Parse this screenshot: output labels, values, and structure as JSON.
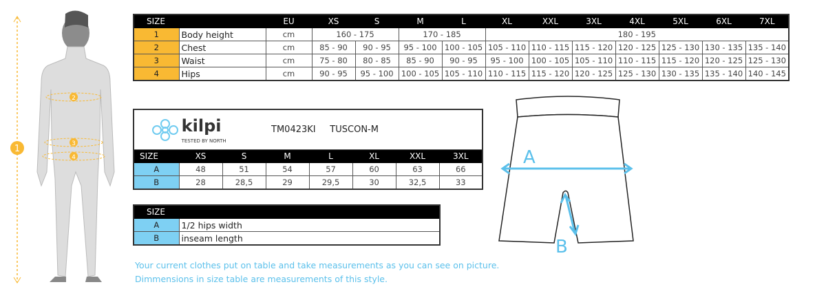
{
  "main_table": {
    "headers": [
      "SIZE",
      "",
      "EU",
      "XS",
      "S",
      "M",
      "L",
      "XL",
      "XXL",
      "3XL",
      "4XL",
      "5XL",
      "6XL",
      "7XL"
    ],
    "rows": [
      {
        "num": "1",
        "label": "Body height",
        "unit": "cm",
        "values": [
          "160 - 175",
          "170 - 185",
          "180 - 195"
        ]
      },
      {
        "num": "2",
        "label": "Chest",
        "unit": "cm",
        "values": [
          "85 - 90",
          "90 - 95",
          "95 - 100",
          "100 - 105",
          "105 - 110",
          "110 - 115",
          "115 - 120",
          "120 - 125",
          "125 - 130",
          "130 - 135",
          "135 - 140"
        ]
      },
      {
        "num": "3",
        "label": "Waist",
        "unit": "cm",
        "values": [
          "75 - 80",
          "80 - 85",
          "85 - 90",
          "90 - 95",
          "95 - 100",
          "100 - 105",
          "105 - 110",
          "110 - 115",
          "115 - 120",
          "120 - 125",
          "125 - 130"
        ]
      },
      {
        "num": "4",
        "label": "Hips",
        "unit": "cm",
        "values": [
          "90 - 95",
          "95 - 100",
          "100 - 105",
          "105 - 110",
          "110 - 115",
          "115 - 120",
          "120 - 125",
          "125 - 130",
          "130 - 135",
          "135 - 140",
          "140 - 145"
        ]
      }
    ]
  },
  "product": {
    "brand": "kilpi",
    "tagline": "Tested by North",
    "code": "TM0423KI",
    "name": "TUSCON-M"
  },
  "style_table": {
    "headers": [
      "SIZE",
      "XS",
      "S",
      "M",
      "L",
      "XL",
      "XXL",
      "3XL"
    ],
    "rows": [
      {
        "key": "A",
        "values": [
          "48",
          "51",
          "54",
          "57",
          "60",
          "63",
          "66"
        ]
      },
      {
        "key": "B",
        "values": [
          "28",
          "28,5",
          "29",
          "29,5",
          "30",
          "32,5",
          "33"
        ]
      }
    ]
  },
  "legend_table": {
    "header": "SIZE",
    "rows": [
      {
        "key": "A",
        "desc": "1/2 hips width"
      },
      {
        "key": "B",
        "desc": "inseam length"
      }
    ]
  },
  "figure": {
    "markers": [
      "1",
      "2",
      "3",
      "4"
    ],
    "shorts_labels": [
      "A",
      "B"
    ]
  },
  "notes": [
    "Your current clothes put on table and take measurements as you can see on picture.",
    "Dimmensions in size table are measurements of this style."
  ],
  "colors": {
    "orange": "#f9b933",
    "blue": "#7ed0f3",
    "note": "#5bc0eb"
  }
}
